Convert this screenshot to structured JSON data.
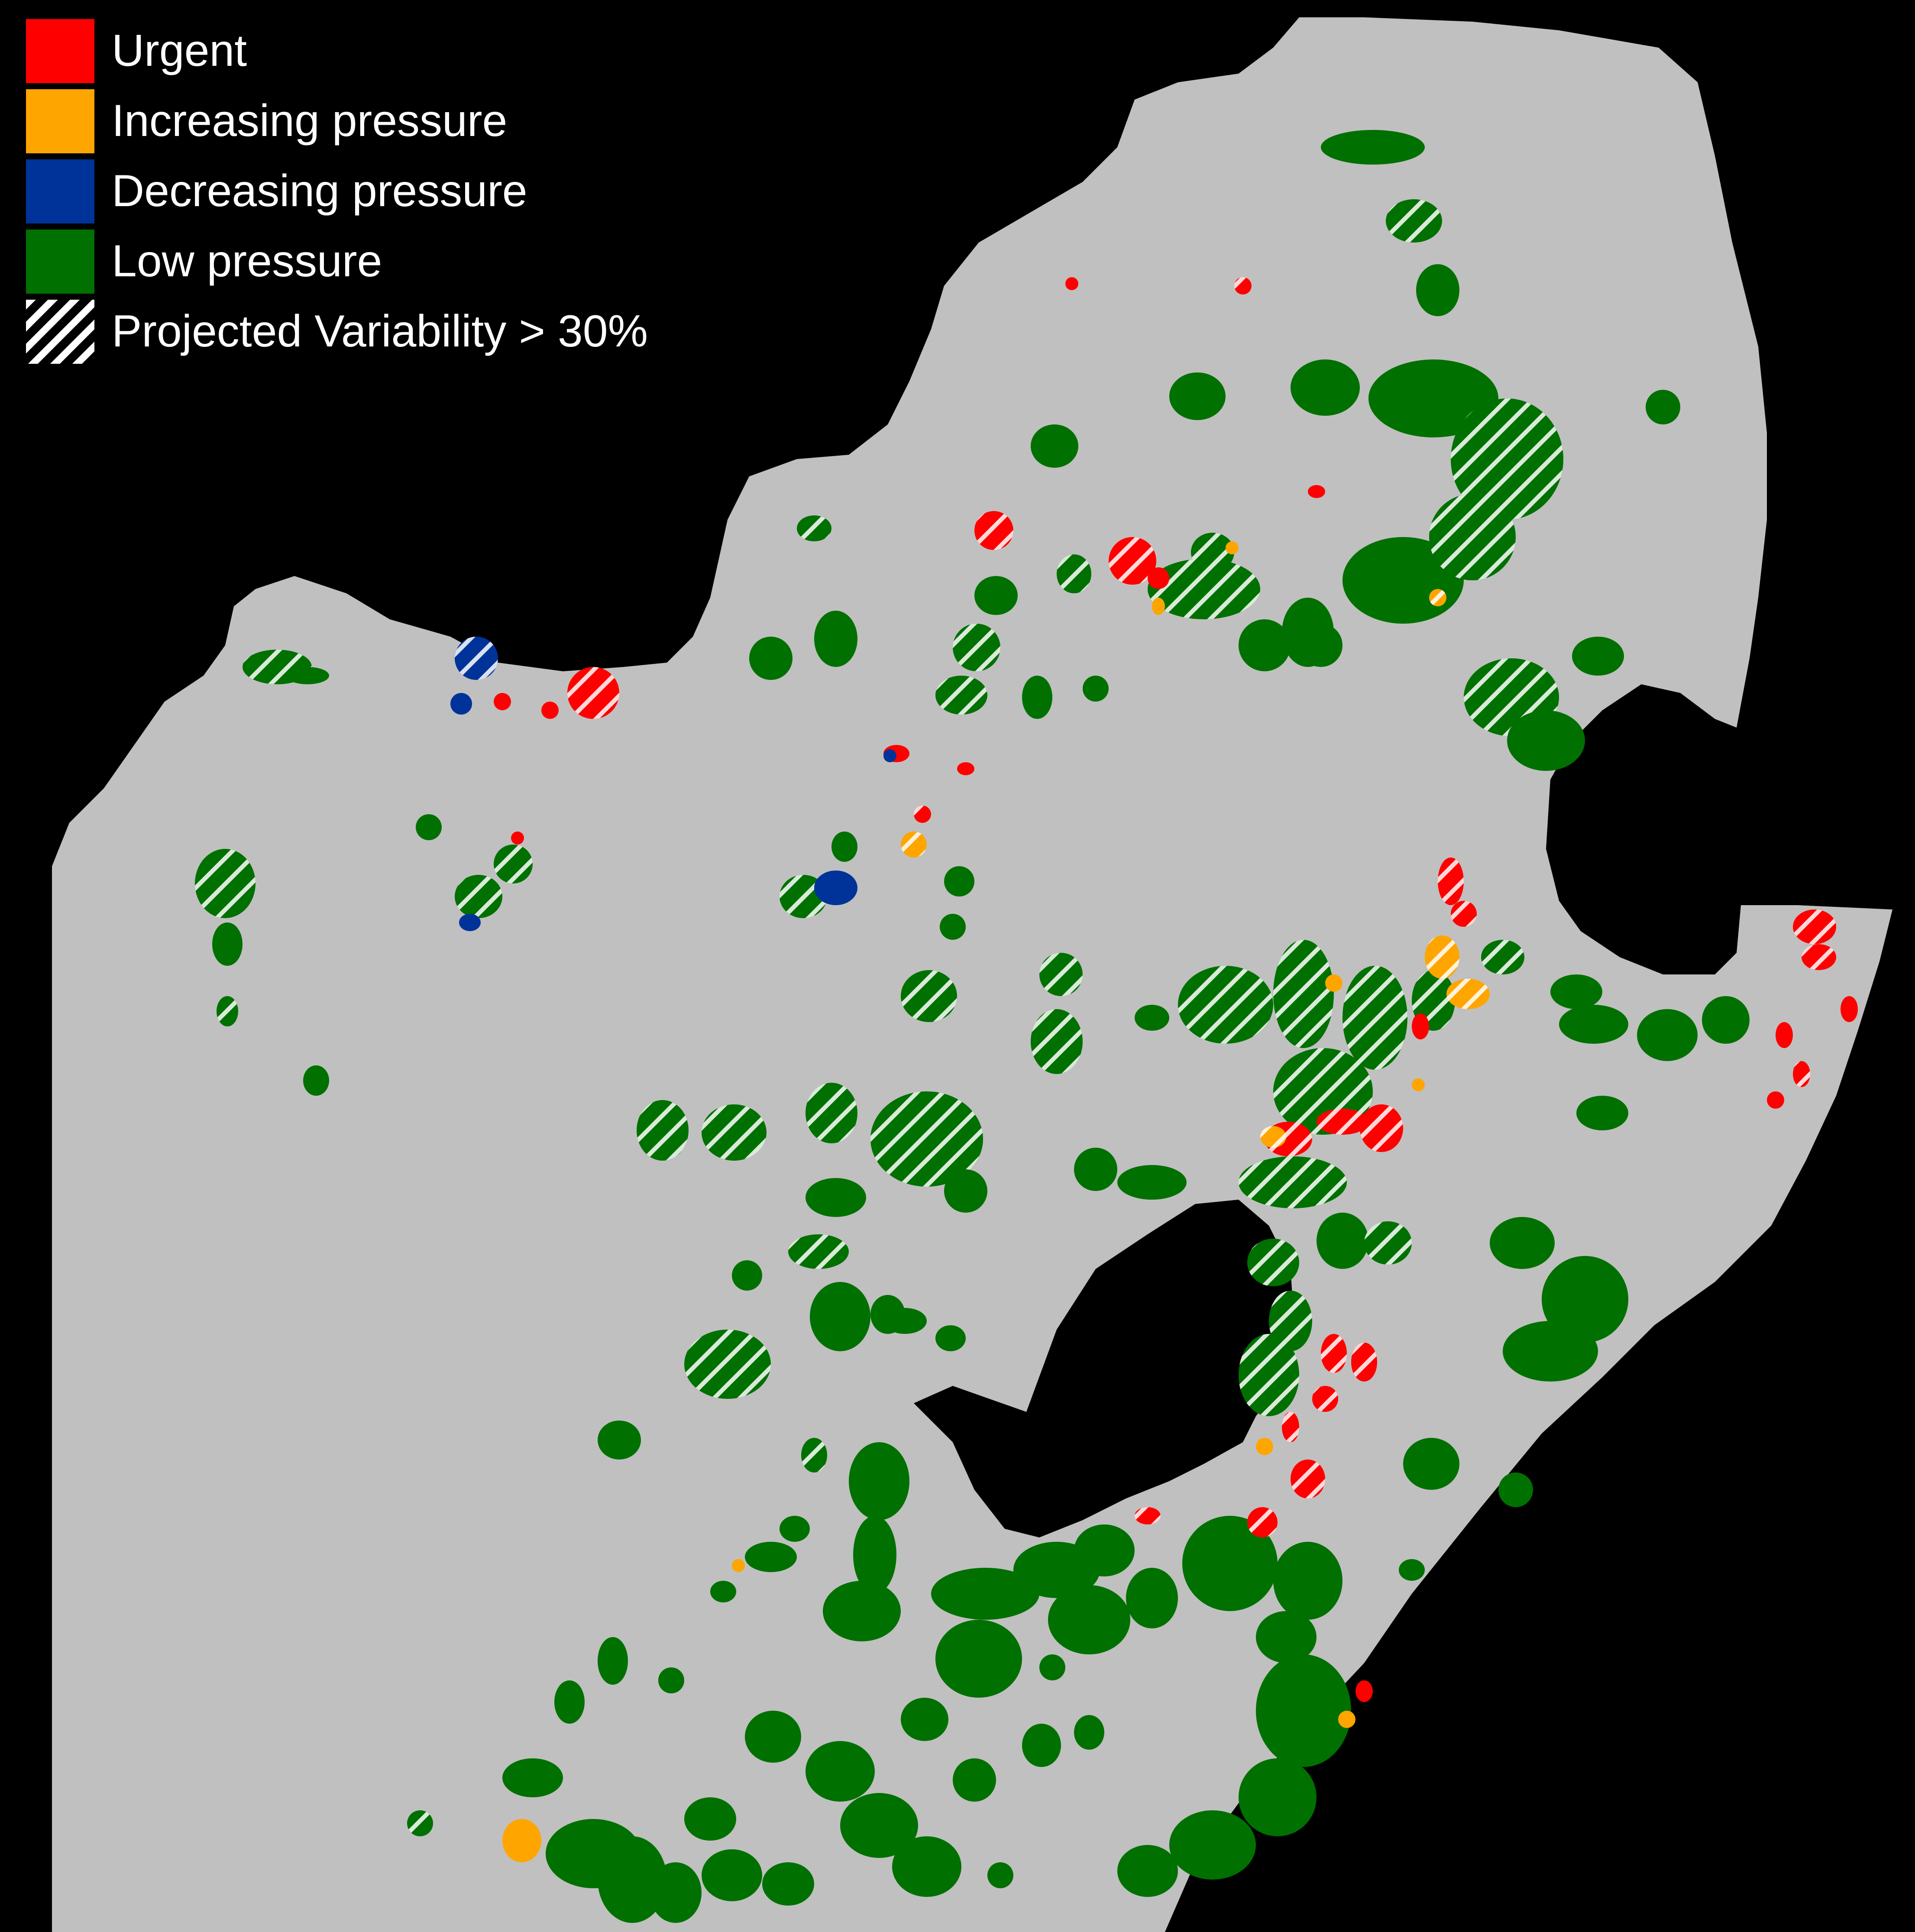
{
  "colors": {
    "background": "#000000",
    "land": "#c0c0c0",
    "urgent": "#ff0000",
    "increasing": "#ffa500",
    "decreasing": "#003399",
    "low": "#007000",
    "hatch": "#ffffff"
  },
  "legend": {
    "items": [
      {
        "label": "Urgent",
        "color": "#ff0000",
        "pattern": "solid"
      },
      {
        "label": "Increasing pressure",
        "color": "#ffa500",
        "pattern": "solid"
      },
      {
        "label": "Decreasing pressure",
        "color": "#003399",
        "pattern": "solid"
      },
      {
        "label": "Low pressure",
        "color": "#007000",
        "pattern": "solid"
      },
      {
        "label": "Projected Variability > 30%",
        "color": "#ffffff",
        "pattern": "hatch"
      }
    ]
  }
}
